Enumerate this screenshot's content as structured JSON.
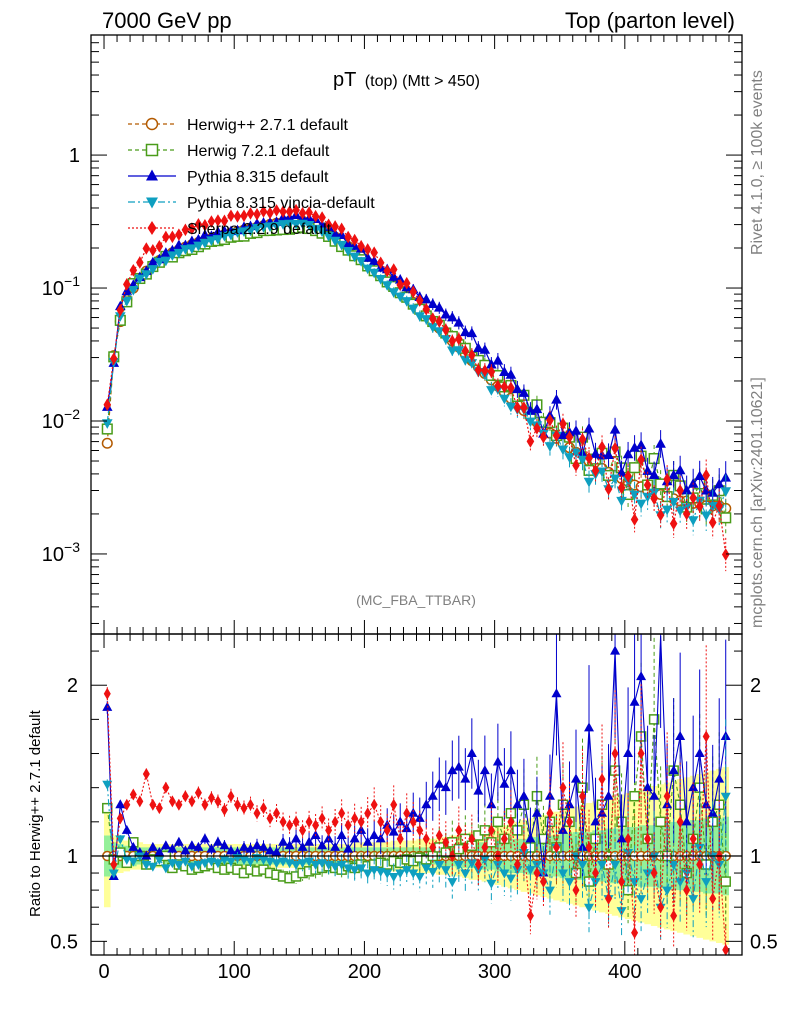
{
  "header": {
    "left": "7000 GeV pp",
    "right": "Top (parton level)"
  },
  "side": {
    "rivet": "Rivet 4.1.0, ≥ 100k events",
    "mcplots": "mcplots.cern.ch [arXiv:2401.10621]"
  },
  "chart_data": [
    {
      "type": "line",
      "title_main": "pT",
      "title_sub": "(top) (Mtt > 450)",
      "analysis": "(MC_FBA_TTBAR)",
      "xlabel": "",
      "ylabel": "",
      "xlim": [
        -10,
        490
      ],
      "ylog": true,
      "ylim": [
        0.00025,
        8
      ],
      "xticks": [
        "0",
        "100",
        "200",
        "300",
        "400"
      ],
      "xtick_values": [
        0,
        100,
        200,
        300,
        400
      ],
      "yticks": [
        {
          "value": 1,
          "label": "1",
          "base": "",
          "exp": ""
        },
        {
          "value": 0.1,
          "label": "10^-1",
          "base": "10",
          "exp": "−1"
        },
        {
          "value": 0.01,
          "label": "10^-2",
          "base": "10",
          "exp": "−2"
        },
        {
          "value": 0.001,
          "label": "10^-3",
          "base": "10",
          "exp": "−3"
        }
      ],
      "legend_position": "top-left",
      "series": [
        {
          "name": "Herwig++ 2.7.1 default",
          "color": "#b35a00",
          "marker": "circle-open",
          "dash": "4,3"
        },
        {
          "name": "Herwig 7.2.1 default",
          "color": "#4a9c1a",
          "marker": "square-open",
          "dash": "4,3"
        },
        {
          "name": "Pythia 8.315 default",
          "color": "#0000cc",
          "marker": "triangle-up",
          "dash": ""
        },
        {
          "name": "Pythia 8.315 vincia-default",
          "color": "#0e9fc0",
          "marker": "triangle-down",
          "dash": "7,3,2,3"
        },
        {
          "name": "Sherpa 2.2.9 default",
          "color": "#ee1111",
          "marker": "diamond",
          "dash": "2,2"
        }
      ],
      "x": [
        2.5,
        7.5,
        12.5,
        17.5,
        22.5,
        27.5,
        32.5,
        37.5,
        42.5,
        47.5,
        52.5,
        57.5,
        62.5,
        67.5,
        72.5,
        77.5,
        82.5,
        87.5,
        92.5,
        97.5,
        102.5,
        107.5,
        112.5,
        117.5,
        122.5,
        127.5,
        132.5,
        137.5,
        142.5,
        147.5,
        152.5,
        157.5,
        162.5,
        167.5,
        172.5,
        177.5,
        182.5,
        187.5,
        192.5,
        197.5,
        202.5,
        207.5,
        212.5,
        217.5,
        222.5,
        227.5,
        232.5,
        237.5,
        242.5,
        247.5,
        252.5,
        257.5,
        262.5,
        267.5,
        272.5,
        277.5,
        282.5,
        287.5,
        292.5,
        297.5,
        302.5,
        307.5,
        312.5,
        317.5,
        322.5,
        327.5,
        332.5,
        337.5,
        342.5,
        347.5,
        352.5,
        357.5,
        362.5,
        367.5,
        372.5,
        377.5,
        382.5,
        387.5,
        392.5,
        397.5,
        402.5,
        407.5,
        412.5,
        417.5,
        422.5,
        427.5,
        432.5,
        437.5,
        442.5,
        447.5,
        452.5,
        457.5,
        462.5,
        467.5,
        472.5,
        477.5
      ],
      "reference_values": [
        0.0068,
        0.031,
        0.056,
        0.082,
        0.1,
        0.118,
        0.134,
        0.148,
        0.161,
        0.173,
        0.184,
        0.194,
        0.203,
        0.212,
        0.22,
        0.228,
        0.236,
        0.244,
        0.252,
        0.259,
        0.266,
        0.273,
        0.28,
        0.287,
        0.294,
        0.301,
        0.307,
        0.313,
        0.318,
        0.321,
        0.318,
        0.308,
        0.294,
        0.278,
        0.26,
        0.242,
        0.223,
        0.205,
        0.188,
        0.172,
        0.156,
        0.142,
        0.129,
        0.117,
        0.106,
        0.096,
        0.087,
        0.078,
        0.07,
        0.063,
        0.056,
        0.05,
        0.045,
        0.04,
        0.036,
        0.032,
        0.0285,
        0.0255,
        0.0228,
        0.0204,
        0.0183,
        0.0164,
        0.0148,
        0.0133,
        0.012,
        0.0108,
        0.0098,
        0.0089,
        0.0081,
        0.0074,
        0.0068,
        0.0063,
        0.0058,
        0.0054,
        0.005,
        0.0047,
        0.0044,
        0.0041,
        0.0039,
        0.0037,
        0.0035,
        0.0033,
        0.0032,
        0.003,
        0.0029,
        0.0028,
        0.0027,
        0.0026,
        0.0025,
        0.0025,
        0.0024,
        0.0024,
        0.0023,
        0.0023,
        0.0023,
        0.0022
      ],
      "ratios": [
        [
          1,
          1,
          1,
          1,
          1,
          1,
          1,
          1,
          1,
          1,
          1,
          1,
          1,
          1,
          1,
          1,
          1,
          1,
          1,
          1,
          1,
          1,
          1,
          1,
          1,
          1,
          1,
          1,
          1,
          1,
          1,
          1,
          1,
          1,
          1,
          1,
          1,
          1,
          1,
          1,
          1,
          1,
          1,
          1,
          1,
          1,
          1,
          1,
          1,
          1,
          1,
          1,
          1,
          1,
          1,
          1,
          1,
          1,
          1,
          1,
          1,
          1,
          1,
          1,
          1,
          1,
          1,
          1,
          1,
          1,
          1,
          1,
          1,
          1,
          1,
          1,
          1,
          1,
          1,
          1,
          1,
          1,
          1,
          1,
          1,
          1,
          1,
          1,
          1,
          1,
          1,
          1,
          1,
          1,
          1,
          1
        ],
        [
          1.28,
          0.98,
          1.02,
          0.96,
          1.08,
          1.0,
          0.95,
          0.98,
          0.97,
          1.0,
          0.93,
          0.95,
          0.94,
          0.92,
          0.93,
          0.94,
          0.95,
          0.93,
          0.92,
          0.93,
          0.92,
          0.9,
          0.92,
          0.91,
          0.92,
          0.9,
          0.89,
          0.88,
          0.87,
          0.88,
          0.9,
          0.91,
          0.92,
          0.93,
          0.94,
          0.93,
          0.92,
          0.94,
          0.93,
          0.95,
          0.94,
          0.95,
          0.96,
          0.95,
          0.97,
          0.96,
          0.98,
          0.97,
          0.99,
          0.98,
          1.0,
          1.05,
          1.02,
          1.08,
          1.04,
          1.1,
          1.06,
          1.12,
          1.15,
          1.08,
          1.2,
          1.1,
          1.25,
          1.15,
          1.3,
          1.05,
          1.35,
          1.1,
          1.2,
          1.05,
          1.3,
          1.2,
          0.9,
          1.4,
          0.85,
          1.1,
          1.3,
          0.95,
          1.5,
          1.2,
          0.8,
          1.35,
          1.7,
          1.1,
          1.8,
          1.2,
          1.0,
          1.5,
          1.3,
          0.9,
          1.1,
          1.4,
          0.95,
          1.2,
          1.3,
          0.85
        ],
        [
          1.87,
          0.88,
          1.3,
          1.15,
          1.05,
          1.02,
          1.0,
          1.05,
          1.02,
          1.06,
          1.04,
          1.08,
          1.03,
          1.06,
          1.05,
          1.1,
          1.04,
          1.08,
          1.06,
          1.03,
          1.02,
          1.05,
          1.04,
          1.06,
          1.05,
          1.03,
          1.02,
          1.08,
          1.06,
          1.1,
          1.05,
          1.08,
          1.12,
          1.06,
          1.1,
          1.05,
          1.12,
          1.04,
          1.1,
          1.15,
          1.08,
          1.12,
          1.1,
          1.18,
          1.14,
          1.2,
          1.16,
          1.25,
          1.22,
          1.3,
          1.35,
          1.42,
          1.4,
          1.5,
          1.52,
          1.45,
          1.6,
          1.38,
          1.5,
          1.3,
          1.55,
          1.42,
          1.5,
          1.3,
          1.35,
          1.1,
          1.25,
          0.9,
          1.35,
          1.95,
          1.15,
          1.3,
          1.45,
          1.05,
          1.75,
          1.2,
          1.25,
          1.35,
          2.2,
          1.1,
          1.6,
          1.9,
          2.05,
          1.4,
          1.35,
          2.4,
          1.3,
          1.5,
          1.7,
          1.2,
          1.4,
          1.6,
          1.3,
          1.25,
          1.45,
          1.7
        ],
        [
          1.42,
          0.9,
          1.1,
          0.98,
          0.97,
          1.0,
          0.95,
          0.94,
          0.98,
          0.93,
          0.96,
          0.95,
          0.97,
          0.94,
          0.95,
          0.96,
          0.97,
          0.96,
          0.98,
          0.97,
          0.99,
          0.98,
          0.97,
          0.99,
          0.98,
          0.97,
          0.96,
          0.97,
          0.96,
          0.95,
          0.96,
          0.97,
          0.95,
          0.96,
          0.95,
          0.94,
          0.95,
          0.93,
          0.92,
          0.93,
          0.9,
          0.92,
          0.91,
          0.9,
          0.88,
          0.9,
          0.92,
          0.9,
          0.88,
          0.93,
          0.91,
          0.95,
          0.92,
          0.85,
          0.95,
          0.9,
          0.96,
          0.92,
          0.98,
          0.84,
          0.95,
          0.9,
          0.87,
          0.92,
          1.02,
          0.92,
          0.95,
          0.9,
          0.8,
          1.05,
          0.9,
          0.85,
          1.0,
          0.95,
          0.7,
          0.85,
          0.95,
          0.75,
          0.95,
          0.68,
          1.02,
          0.85,
          0.75,
          0.9,
          1.0,
          0.7,
          0.8,
          0.95,
          0.85,
          0.9,
          0.75,
          1.05,
          0.85,
          1.0,
          0.95,
          1.35
        ],
        [
          1.95,
          0.95,
          1.22,
          1.3,
          1.36,
          1.32,
          1.48,
          1.3,
          1.28,
          1.4,
          1.32,
          1.3,
          1.35,
          1.32,
          1.37,
          1.3,
          1.34,
          1.32,
          1.27,
          1.35,
          1.3,
          1.28,
          1.3,
          1.25,
          1.28,
          1.22,
          1.25,
          1.2,
          1.18,
          1.2,
          1.15,
          1.2,
          1.18,
          1.22,
          1.15,
          1.2,
          1.25,
          1.18,
          1.22,
          1.2,
          1.25,
          1.3,
          1.2,
          1.15,
          1.3,
          1.1,
          1.25,
          1.2,
          1.15,
          1.1,
          1.05,
          1.12,
          1.08,
          1.0,
          1.15,
          1.05,
          1.1,
          0.95,
          1.05,
          1.15,
          1.0,
          1.1,
          1.2,
          0.95,
          1.05,
          0.65,
          0.9,
          0.85,
          1.25,
          1.05,
          1.4,
          1.2,
          0.8,
          1.35,
          1.05,
          0.9,
          1.45,
          0.75,
          1.6,
          0.85,
          1.1,
          0.55,
          1.6,
          1.1,
          0.9,
          0.7,
          1.35,
          0.65,
          1.2,
          0.8,
          1.1,
          0.95,
          1.7,
          0.75,
          1.0,
          0.45
        ]
      ],
      "band_inner": [
        0.12,
        0.08,
        0.07,
        0.06,
        0.06,
        0.05,
        0.05,
        0.05,
        0.05,
        0.05,
        0.05,
        0.05,
        0.05,
        0.05,
        0.05,
        0.05,
        0.05,
        0.05,
        0.05,
        0.05,
        0.05,
        0.05,
        0.05,
        0.05,
        0.05,
        0.05,
        0.05,
        0.05,
        0.05,
        0.05,
        0.05,
        0.05,
        0.05,
        0.05,
        0.05,
        0.05,
        0.05,
        0.05,
        0.05,
        0.05,
        0.05,
        0.05,
        0.05,
        0.05,
        0.05,
        0.05,
        0.05,
        0.05,
        0.05,
        0.05,
        0.05,
        0.06,
        0.06,
        0.06,
        0.07,
        0.07,
        0.07,
        0.08,
        0.08,
        0.08,
        0.09,
        0.09,
        0.1,
        0.1,
        0.1,
        0.11,
        0.11,
        0.12,
        0.12,
        0.12,
        0.13,
        0.13,
        0.14,
        0.14,
        0.14,
        0.15,
        0.15,
        0.16,
        0.16,
        0.16,
        0.17,
        0.17,
        0.18,
        0.18,
        0.18,
        0.19,
        0.19,
        0.2,
        0.2,
        0.2,
        0.21,
        0.21,
        0.22,
        0.22,
        0.22,
        0.23
      ],
      "band_outer": [
        0.3,
        0.12,
        0.1,
        0.09,
        0.08,
        0.08,
        0.07,
        0.07,
        0.07,
        0.07,
        0.07,
        0.07,
        0.07,
        0.07,
        0.07,
        0.07,
        0.07,
        0.07,
        0.07,
        0.07,
        0.07,
        0.07,
        0.07,
        0.07,
        0.07,
        0.07,
        0.07,
        0.07,
        0.07,
        0.07,
        0.07,
        0.07,
        0.07,
        0.07,
        0.07,
        0.07,
        0.07,
        0.07,
        0.08,
        0.08,
        0.08,
        0.08,
        0.08,
        0.08,
        0.09,
        0.09,
        0.09,
        0.09,
        0.1,
        0.1,
        0.1,
        0.11,
        0.11,
        0.12,
        0.12,
        0.13,
        0.14,
        0.14,
        0.15,
        0.16,
        0.17,
        0.18,
        0.19,
        0.2,
        0.21,
        0.22,
        0.23,
        0.24,
        0.25,
        0.26,
        0.27,
        0.28,
        0.29,
        0.3,
        0.31,
        0.32,
        0.33,
        0.34,
        0.35,
        0.36,
        0.37,
        0.38,
        0.39,
        0.4,
        0.41,
        0.42,
        0.43,
        0.44,
        0.45,
        0.46,
        0.47,
        0.48,
        0.49,
        0.5,
        0.51,
        0.52
      ]
    },
    {
      "type": "line",
      "ylabel": "Ratio to Herwig++ 2.7.1 default",
      "xlim": [
        -10,
        490
      ],
      "ylim": [
        0.42,
        2.3
      ],
      "reference_line": 1,
      "yticks": [
        "2",
        "1",
        "0.5"
      ],
      "ytick_values": [
        2,
        1,
        0.5
      ]
    }
  ]
}
